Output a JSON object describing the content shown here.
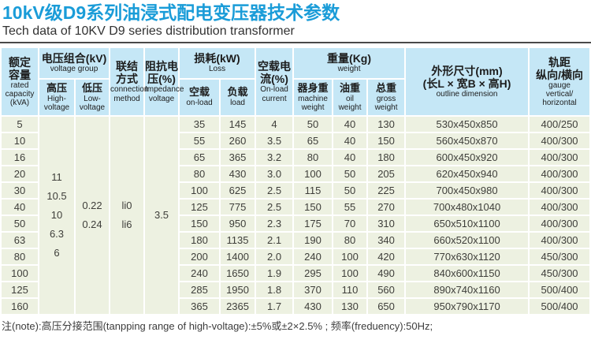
{
  "accent_colors": {
    "title_blue": "#1a9cd8",
    "header_bg": "#c5e7f6",
    "row_bg": "#edf1e1",
    "divider": "#4a4a4a"
  },
  "title_zh": "10kV级D9系列油浸式配电变压器技术参数",
  "title_en": "Tech data of 10KV D9 series distribution transformer",
  "table": {
    "header": {
      "capacity": {
        "zh": "额定\n容量",
        "en": "rated\ncapacity\n(kVA)"
      },
      "voltage_group": {
        "zh": "电压组合(kV)",
        "en": "voltage group"
      },
      "high_voltage": {
        "zh": "高压",
        "en": "High-\nvoltage"
      },
      "low_voltage": {
        "zh": "低压",
        "en": "Low-\nvoltage"
      },
      "connection": {
        "zh": "联结\n方式",
        "en": "connection\nmethod"
      },
      "impedance": {
        "zh": "阻抗电\n压(%)",
        "en": "Impedance\nvoltage"
      },
      "loss": {
        "zh": "损耗(kW)",
        "en": "Loss"
      },
      "no_load_loss": {
        "zh": "空载",
        "en": "on-load"
      },
      "load_loss": {
        "zh": "负载",
        "en": "load"
      },
      "no_load_current": {
        "zh": "空载电\n流(%)",
        "en": "On-load\ncurrent"
      },
      "weight": {
        "zh": "重量(Kg)",
        "en": "weight"
      },
      "machine_weight": {
        "zh": "器身重",
        "en": "machine\nweight"
      },
      "oil_weight": {
        "zh": "油重",
        "en": "oil\nweight"
      },
      "gross_weight": {
        "zh": "总重",
        "en": "gross\nweight"
      },
      "outline": {
        "zh": "外形尺寸(mm)\n(长L × 宽B × 高H)",
        "en": "outline dimension"
      },
      "gauge": {
        "zh": "轨距\n纵向/横向",
        "en": "gauge\nvertical/\nhorizontal"
      }
    },
    "col_keys": [
      "capacity",
      "no-load-loss",
      "load-loss",
      "no-load-current",
      "machine-weight",
      "oil-weight",
      "gross-weight",
      "outline-dimension",
      "gauge"
    ],
    "merged_columns": [
      {
        "key": "high-voltage",
        "value": "11\n10.5\n10\n6.3\n6"
      },
      {
        "key": "low-voltage",
        "value": "0.22\n0.24"
      },
      {
        "key": "connection",
        "value": "li0\nli6"
      },
      {
        "key": "impedance",
        "value": "3.5"
      }
    ],
    "rows": [
      [
        "5",
        "35",
        "145",
        "4",
        "50",
        "40",
        "130",
        "530x450x850",
        "400/250"
      ],
      [
        "10",
        "55",
        "260",
        "3.5",
        "65",
        "40",
        "150",
        "560x450x870",
        "400/300"
      ],
      [
        "16",
        "65",
        "365",
        "3.2",
        "80",
        "40",
        "180",
        "600x450x920",
        "400/300"
      ],
      [
        "20",
        "80",
        "430",
        "3.0",
        "100",
        "50",
        "205",
        "620x450x940",
        "400/300"
      ],
      [
        "30",
        "100",
        "625",
        "2.5",
        "115",
        "50",
        "225",
        "700x450x980",
        "400/300"
      ],
      [
        "40",
        "125",
        "775",
        "2.5",
        "150",
        "55",
        "270",
        "700x480x1040",
        "400/300"
      ],
      [
        "50",
        "150",
        "950",
        "2.3",
        "175",
        "70",
        "310",
        "650x510x1100",
        "400/300"
      ],
      [
        "63",
        "180",
        "1135",
        "2.1",
        "190",
        "80",
        "340",
        "660x520x1100",
        "400/300"
      ],
      [
        "80",
        "200",
        "1400",
        "2.0",
        "240",
        "100",
        "420",
        "770x630x1120",
        "450/300"
      ],
      [
        "100",
        "240",
        "1650",
        "1.9",
        "295",
        "100",
        "490",
        "840x600x1150",
        "450/300"
      ],
      [
        "125",
        "285",
        "1950",
        "1.8",
        "370",
        "110",
        "560",
        "890x740x1160",
        "500/400"
      ],
      [
        "160",
        "365",
        "2365",
        "1.7",
        "430",
        "130",
        "650",
        "950x790x1170",
        "500/400"
      ]
    ]
  },
  "note": "注(note):高压分接范围(tanpping range of high-voltage):±5%或±2×2.5% ; 频率(freduency):50Hz;"
}
